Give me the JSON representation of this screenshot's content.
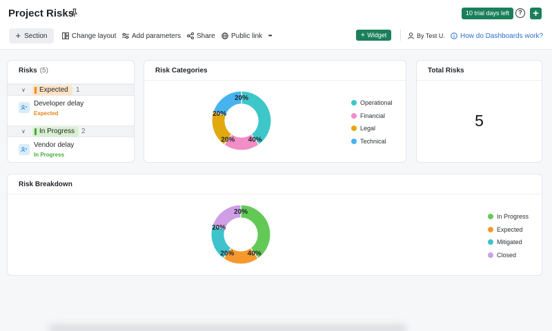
{
  "header": {
    "title": "Project Risks",
    "trial_badge": "10 trial days left",
    "help_glyph": "?",
    "add_glyph": "+"
  },
  "toolbar": {
    "section_label": "Section",
    "change_layout_label": "Change layout",
    "add_parameters_label": "Add parameters",
    "share_label": "Share",
    "public_link_label": "Public link",
    "more_glyph": "•••",
    "widget_label": "Widget",
    "author_label": "By Test U.",
    "help_link_label": "How do Dashboards work?"
  },
  "risks_card": {
    "title": "Risks",
    "count": "(5)",
    "groups": [
      {
        "label": "Expected",
        "count": "1",
        "items": [
          {
            "title": "Developer delay",
            "status": "Expected"
          }
        ]
      },
      {
        "label": "In Progress",
        "count": "2",
        "items": [
          {
            "title": "Vendor delay",
            "status": "In Progress"
          }
        ]
      }
    ]
  },
  "categories_card": {
    "title": "Risk Categories",
    "legend": [
      "Operational",
      "Financial",
      "Legal",
      "Technical"
    ]
  },
  "total_card": {
    "title": "Total Risks",
    "value": "5"
  },
  "breakdown_card": {
    "title": "Risk Breakdown",
    "legend": [
      "In Progress",
      "Expected",
      "Mitigated",
      "Closed"
    ]
  },
  "colors": {
    "brand": "#1a7f5a",
    "operational": "#3ec7c9",
    "financial": "#f28dc6",
    "legal": "#e1a90e",
    "technical": "#46b3ef",
    "in_progress": "#63c956",
    "expected": "#f5992e",
    "mitigated": "#3ec2cc",
    "closed": "#cf9ee6",
    "status_expected": "#e8851a",
    "status_in_progress": "#3fae3a"
  },
  "chart_data": [
    {
      "type": "pie",
      "title": "Risk Categories",
      "categories": [
        "Operational",
        "Financial",
        "Legal",
        "Technical"
      ],
      "values": [
        40,
        20,
        20,
        20
      ],
      "labels": [
        "40%",
        "20%",
        "20%",
        "20%"
      ],
      "donut": true,
      "legend_position": "right"
    },
    {
      "type": "pie",
      "title": "Risk Breakdown",
      "categories": [
        "In Progress",
        "Expected",
        "Mitigated",
        "Closed"
      ],
      "values": [
        40,
        20,
        20,
        20
      ],
      "labels": [
        "40%",
        "20%",
        "20%",
        "20%"
      ],
      "donut": true,
      "legend_position": "right"
    }
  ]
}
